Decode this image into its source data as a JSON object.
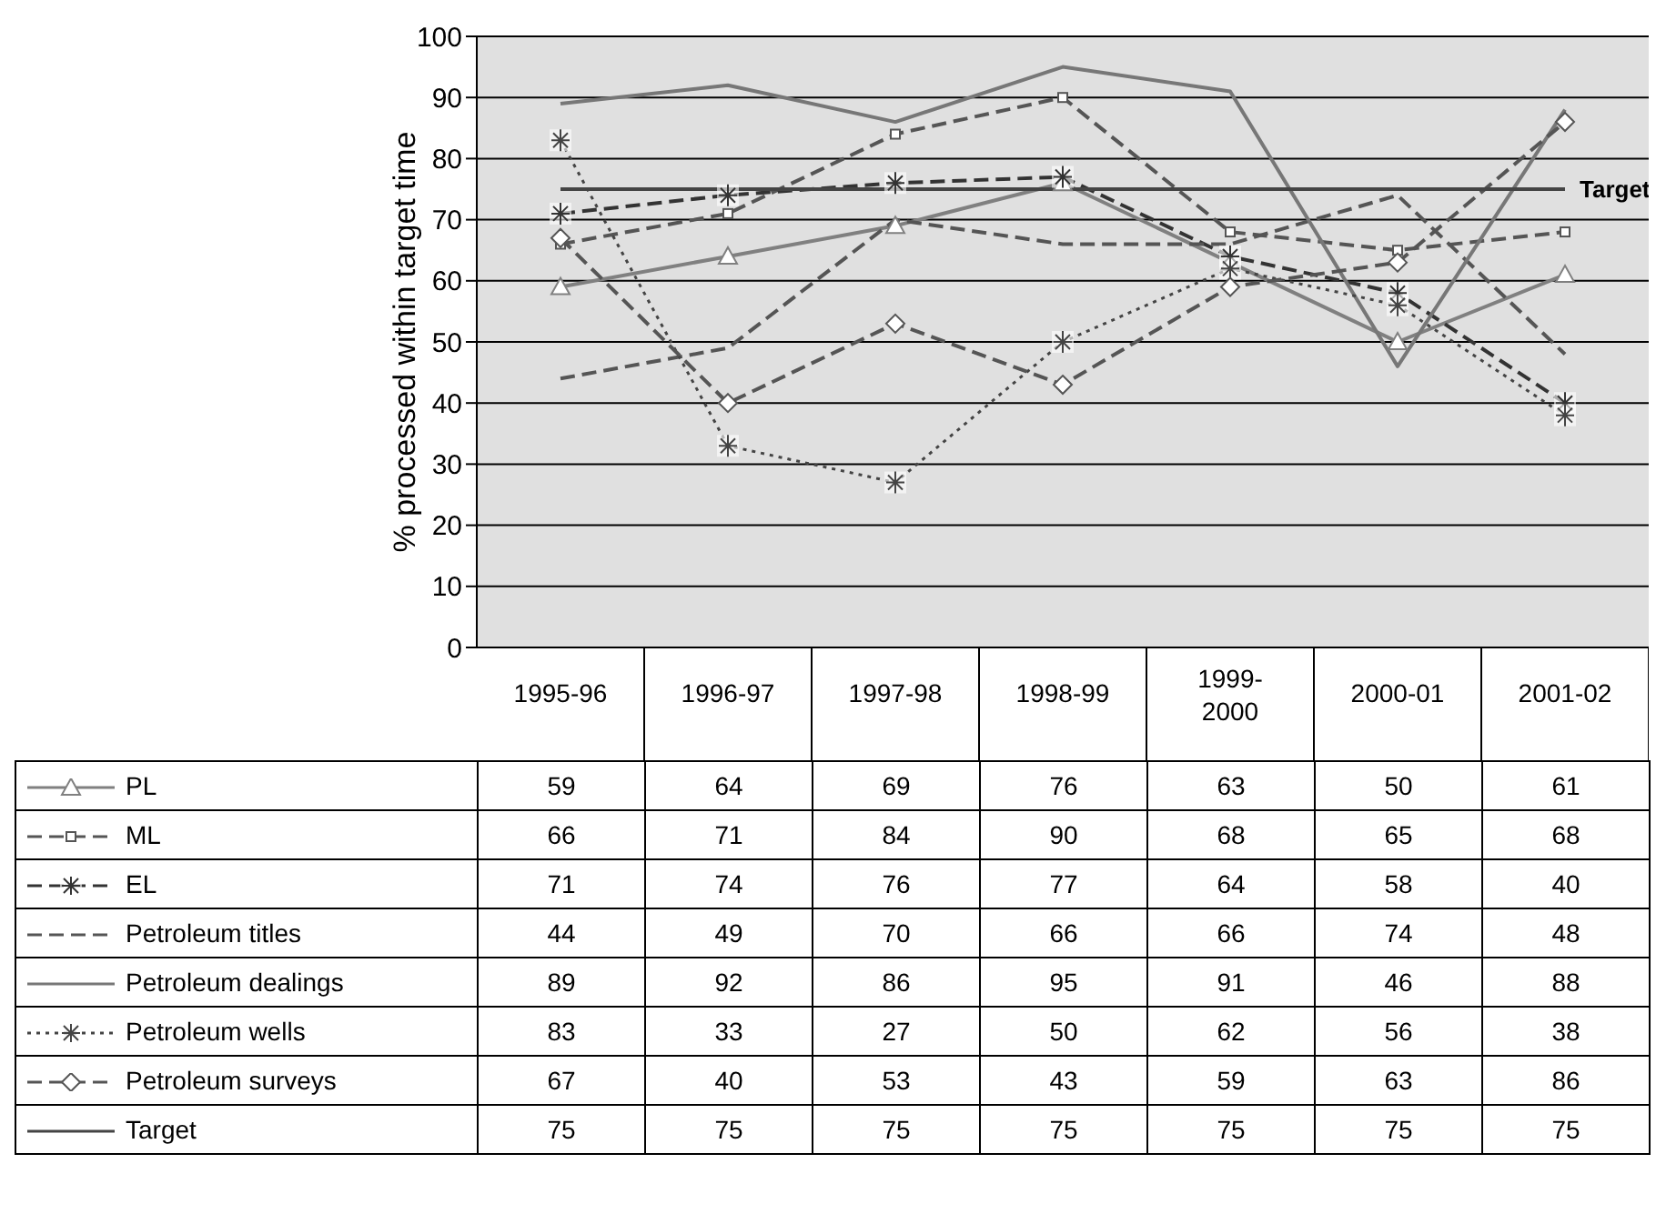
{
  "chart_data": {
    "type": "line",
    "ylabel": "% processed within target time",
    "categories": [
      "1995-96",
      "1996-97",
      "1997-98",
      "1998-99",
      "1999-2000",
      "2000-01",
      "2001-02"
    ],
    "series": [
      {
        "name": "PL",
        "color": "#808080",
        "marker": "triangle",
        "line_style": "solid",
        "values": [
          59,
          64,
          69,
          76,
          63,
          50,
          61
        ]
      },
      {
        "name": "ML",
        "color": "#555555",
        "marker": "square",
        "line_style": "dashed",
        "values": [
          66,
          71,
          84,
          90,
          68,
          65,
          68
        ]
      },
      {
        "name": "EL",
        "color": "#333333",
        "marker": "cross",
        "line_style": "dashed",
        "values": [
          71,
          74,
          76,
          77,
          64,
          58,
          40
        ]
      },
      {
        "name": "Petroleum titles",
        "color": "#555555",
        "marker": "none",
        "line_style": "dashed",
        "values": [
          44,
          49,
          70,
          66,
          66,
          74,
          48
        ]
      },
      {
        "name": "Petroleum dealings",
        "color": "#777777",
        "marker": "none",
        "line_style": "solid",
        "values": [
          89,
          92,
          86,
          95,
          91,
          46,
          88
        ]
      },
      {
        "name": "Petroleum wells",
        "color": "#444444",
        "marker": "cross",
        "line_style": "dotted",
        "values": [
          83,
          33,
          27,
          50,
          62,
          56,
          38
        ]
      },
      {
        "name": "Petroleum surveys",
        "color": "#555555",
        "marker": "diamond",
        "line_style": "dashed",
        "values": [
          67,
          40,
          53,
          43,
          59,
          63,
          86
        ]
      },
      {
        "name": "Target",
        "color": "#444444",
        "marker": "none",
        "line_style": "solid",
        "values": [
          75,
          75,
          75,
          75,
          75,
          75,
          75
        ]
      }
    ],
    "annotations": [
      {
        "text": "Target",
        "x": "2001-02",
        "y": 75
      }
    ],
    "ylim": [
      0,
      100
    ],
    "yticks": [
      0,
      10,
      20,
      30,
      40,
      50,
      60,
      70,
      80,
      90,
      100
    ],
    "grid": "y",
    "legend": "bottom",
    "data_labels": true
  }
}
